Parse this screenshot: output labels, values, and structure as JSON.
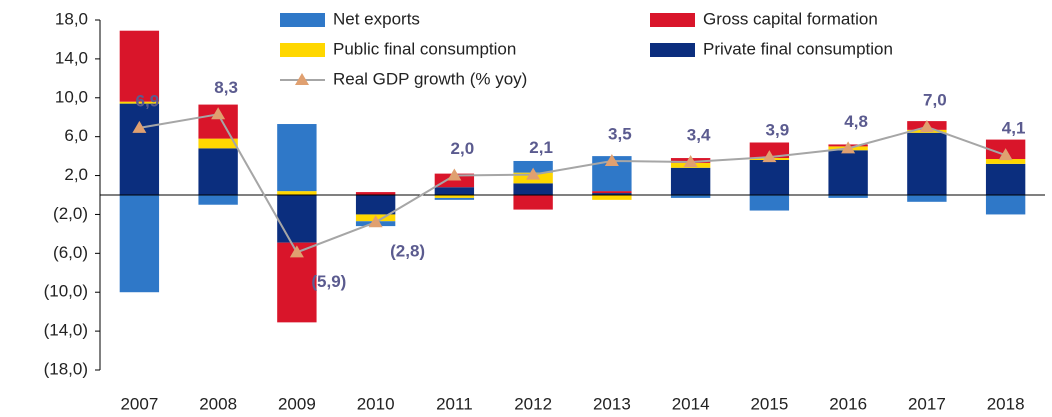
{
  "chart_data": {
    "type": "bar",
    "stacked": true,
    "categories": [
      "2007",
      "2008",
      "2009",
      "2010",
      "2011",
      "2012",
      "2013",
      "2014",
      "2015",
      "2016",
      "2017",
      "2018"
    ],
    "series": [
      {
        "name": "Net exports",
        "color": "#2f78c8",
        "values": [
          -10.0,
          -1.0,
          6.9,
          -0.5,
          -0.2,
          1.2,
          3.6,
          -0.3,
          -1.6,
          -0.3,
          -0.7,
          -2.0
        ]
      },
      {
        "name": "Gross capital formation",
        "color": "#d9152a",
        "values": [
          7.3,
          3.5,
          -8.2,
          0.3,
          1.4,
          -1.5,
          0.2,
          0.5,
          1.6,
          0.2,
          0.9,
          2.0
        ]
      },
      {
        "name": "Public final consumption",
        "color": "#ffd700",
        "values": [
          0.2,
          1.0,
          0.4,
          -0.7,
          -0.3,
          1.1,
          -0.5,
          0.5,
          0.2,
          0.4,
          0.3,
          0.5
        ]
      },
      {
        "name": "Private final consumption",
        "color": "#0b2e7e",
        "values": [
          9.4,
          4.8,
          -4.9,
          -2.0,
          0.8,
          1.2,
          0.2,
          2.8,
          3.6,
          4.6,
          6.4,
          3.2
        ]
      },
      {
        "name": "Real GDP growth (% yoy)",
        "type": "line",
        "color": "#a6a6a6",
        "marker_color": "#e0a070",
        "values": [
          6.9,
          8.3,
          -5.9,
          -2.8,
          2.0,
          2.1,
          3.5,
          3.4,
          3.9,
          4.8,
          7.0,
          4.1
        ],
        "value_labels": [
          "6,9",
          "8,3",
          "(5,9)",
          "(2,8)",
          "2,0",
          "2,1",
          "3,5",
          "3,4",
          "3,9",
          "4,8",
          "7,0",
          "4,1"
        ]
      }
    ],
    "ylim": [
      -18,
      18
    ],
    "yticks": [
      {
        "value": -18,
        "label": "(18,0)"
      },
      {
        "value": -14,
        "label": "(14,0)"
      },
      {
        "value": -10,
        "label": "(10,0)"
      },
      {
        "value": -6,
        "label": "(6,0)"
      },
      {
        "value": -2,
        "label": "(2,0)"
      },
      {
        "value": 2,
        "label": "2,0"
      },
      {
        "value": 6,
        "label": "6,0"
      },
      {
        "value": 10,
        "label": "10,0"
      },
      {
        "value": 14,
        "label": "14,0"
      },
      {
        "value": 18,
        "label": "18,0"
      }
    ]
  }
}
